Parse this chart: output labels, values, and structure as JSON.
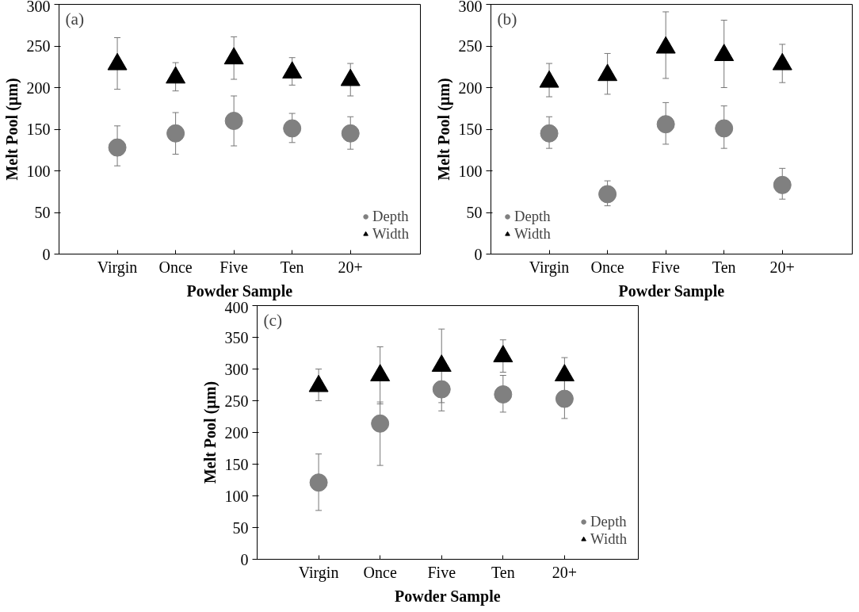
{
  "chart_data": [
    {
      "type": "scatter",
      "annotations": [
        "(a)"
      ],
      "xlabel": "Powder Sample",
      "ylabel": "Melt Pool (µm)",
      "categories": [
        "Virgin",
        "Once",
        "Five",
        "Ten",
        "20+"
      ],
      "ylim": [
        0,
        300
      ],
      "yticks": [
        0,
        50,
        100,
        150,
        200,
        250,
        300
      ],
      "legend": "bottom right",
      "grid": false,
      "series": [
        {
          "name": "Depth",
          "color": "#808080",
          "marker": "circle",
          "values": [
            128,
            145,
            160,
            151,
            145
          ],
          "errors": [
            [
              106,
              154
            ],
            [
              120,
              170
            ],
            [
              130,
              190
            ],
            [
              134,
              169
            ],
            [
              126,
              165
            ]
          ]
        },
        {
          "name": "Width",
          "color": "#000000",
          "marker": "triangle",
          "values": [
            228,
            212,
            235,
            218,
            209
          ],
          "errors": [
            [
              198,
              260
            ],
            [
              196,
              230
            ],
            [
              210,
              261
            ],
            [
              203,
              236
            ],
            [
              190,
              229
            ]
          ]
        }
      ]
    },
    {
      "type": "scatter",
      "annotations": [
        "(b)"
      ],
      "xlabel": "Powder Sample",
      "ylabel": "Melt Pool (µm)",
      "categories": [
        "Virgin",
        "Once",
        "Five",
        "Ten",
        "20+"
      ],
      "ylim": [
        0,
        300
      ],
      "yticks": [
        0,
        50,
        100,
        150,
        200,
        250,
        300
      ],
      "legend": "bottom left",
      "grid": false,
      "series": [
        {
          "name": "Depth",
          "color": "#808080",
          "marker": "circle",
          "values": [
            145,
            72,
            156,
            151,
            83
          ],
          "errors": [
            [
              127,
              165
            ],
            [
              58,
              88
            ],
            [
              132,
              182
            ],
            [
              127,
              178
            ],
            [
              66,
              103
            ]
          ]
        },
        {
          "name": "Width",
          "color": "#000000",
          "marker": "triangle",
          "values": [
            207,
            215,
            248,
            239,
            228
          ],
          "errors": [
            [
              189,
              229
            ],
            [
              192,
              241
            ],
            [
              211,
              291
            ],
            [
              200,
              281
            ],
            [
              206,
              252
            ]
          ]
        }
      ]
    },
    {
      "type": "scatter",
      "annotations": [
        "(c)"
      ],
      "xlabel": "Powder Sample",
      "ylabel": "Melt Pool (µm)",
      "categories": [
        "Virgin",
        "Once",
        "Five",
        "Ten",
        "20+"
      ],
      "ylim": [
        0,
        400
      ],
      "yticks": [
        0,
        50,
        100,
        150,
        200,
        250,
        300,
        350,
        400
      ],
      "legend": "bottom right",
      "grid": false,
      "series": [
        {
          "name": "Depth",
          "color": "#808080",
          "marker": "circle",
          "values": [
            121,
            214,
            268,
            260,
            253
          ],
          "errors": [
            [
              77,
              166
            ],
            [
              148,
              248
            ],
            [
              234,
              268
            ],
            [
              232,
              290
            ],
            [
              222,
              284
            ]
          ]
        },
        {
          "name": "Width",
          "color": "#000000",
          "marker": "triangle",
          "values": [
            273,
            290,
            305,
            320,
            290
          ],
          "errors": [
            [
              250,
              300
            ],
            [
              245,
              335
            ],
            [
              247,
              363
            ],
            [
              295,
              346
            ],
            [
              265,
              318
            ]
          ]
        }
      ]
    }
  ]
}
